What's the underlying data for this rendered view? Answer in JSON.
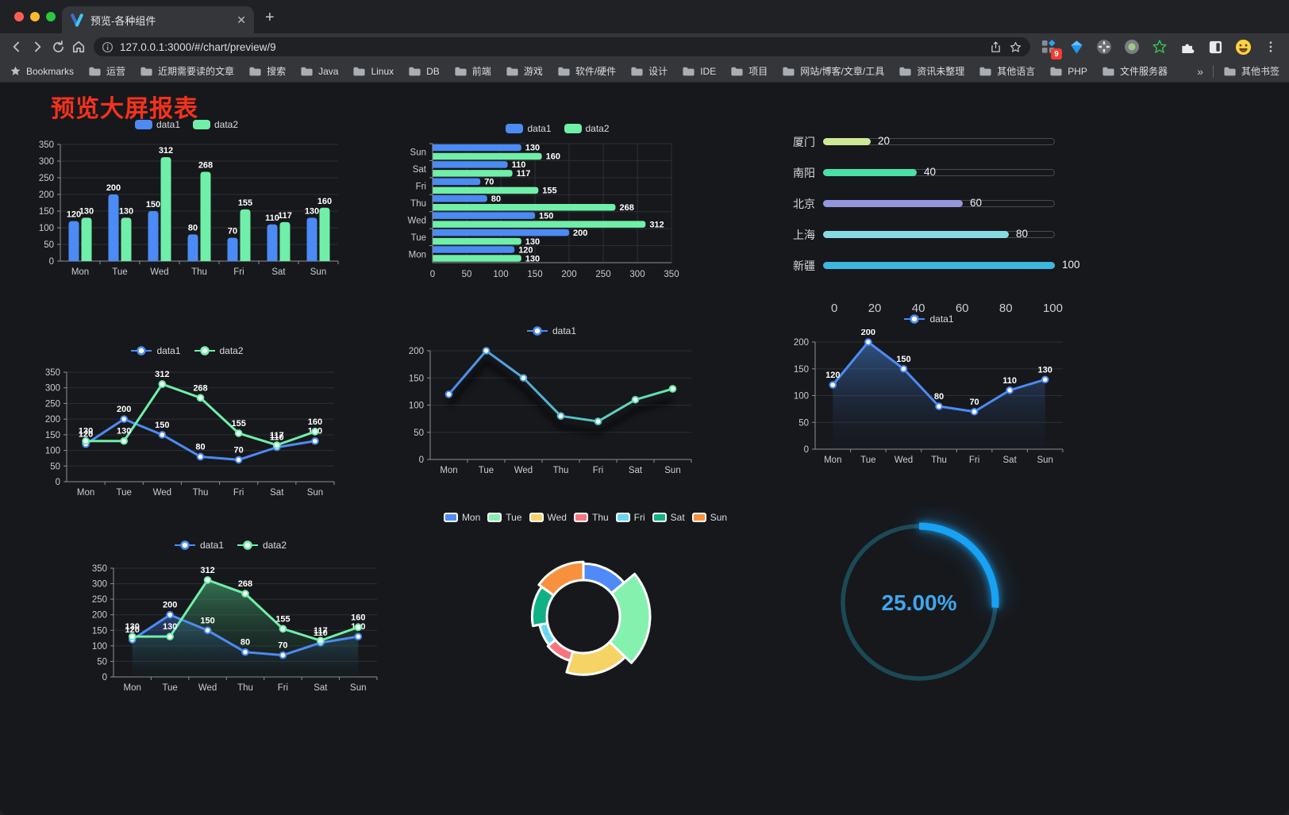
{
  "browser": {
    "tab": {
      "title": "预览-各种组件"
    },
    "url": "127.0.0.1:3000/#/chart/preview/9",
    "extensions_badge": "9",
    "bookmarks_bar": {
      "label": "Bookmarks",
      "folders": [
        "运营",
        "近期需要读的文章",
        "搜索",
        "Java",
        "Linux",
        "DB",
        "前端",
        "游戏",
        "软件/硬件",
        "设计",
        "IDE",
        "项目",
        "网站/博客/文章/工具",
        "资讯未整理",
        "其他语言",
        "PHP",
        "文件服务器"
      ],
      "overflow": "»",
      "other": "其他书签"
    }
  },
  "page": {
    "title": "预览大屏报表"
  },
  "chart_data": [
    {
      "id": "bar-vertical",
      "type": "bar",
      "categories": [
        "Mon",
        "Tue",
        "Wed",
        "Thu",
        "Fri",
        "Sat",
        "Sun"
      ],
      "series": [
        {
          "name": "data1",
          "color": "#4C8BF5",
          "values": [
            120,
            200,
            150,
            80,
            70,
            110,
            130
          ]
        },
        {
          "name": "data2",
          "color": "#6FEFA8",
          "values": [
            130,
            130,
            312,
            268,
            155,
            117,
            160
          ]
        }
      ],
      "ylim": [
        0,
        350
      ],
      "ytick": 50,
      "grid": true,
      "data_labels": true,
      "legend_position": "top"
    },
    {
      "id": "bar-horizontal",
      "type": "bar-horizontal",
      "categories": [
        "Mon",
        "Tue",
        "Wed",
        "Thu",
        "Fri",
        "Sat",
        "Sun"
      ],
      "series": [
        {
          "name": "data1",
          "color": "#4C8BF5",
          "values": [
            120,
            200,
            150,
            80,
            70,
            110,
            130
          ]
        },
        {
          "name": "data2",
          "color": "#6FEFA8",
          "values": [
            130,
            130,
            312,
            268,
            155,
            117,
            160
          ]
        }
      ],
      "xlim": [
        0,
        350
      ],
      "xtick": 50,
      "grid": true,
      "data_labels": true,
      "legend_position": "top"
    },
    {
      "id": "city-progress",
      "type": "progress-bars",
      "items": [
        {
          "label": "厦门",
          "value": 20,
          "color": "#cde995"
        },
        {
          "label": "南阳",
          "value": 40,
          "color": "#4ae0a8"
        },
        {
          "label": "北京",
          "value": 60,
          "color": "#9397de"
        },
        {
          "label": "上海",
          "value": 80,
          "color": "#87dae4"
        },
        {
          "label": "新疆",
          "value": 100,
          "color": "#3cb7de"
        }
      ],
      "xlim": [
        0,
        100
      ],
      "xticks": [
        0,
        20,
        40,
        60,
        80,
        100
      ]
    },
    {
      "id": "line-two",
      "type": "line",
      "categories": [
        "Mon",
        "Tue",
        "Wed",
        "Thu",
        "Fri",
        "Sat",
        "Sun"
      ],
      "series": [
        {
          "name": "data1",
          "color": "#4C8BF5",
          "values": [
            120,
            200,
            150,
            80,
            70,
            110,
            130
          ]
        },
        {
          "name": "data2",
          "color": "#6FEFA8",
          "values": [
            130,
            130,
            312,
            268,
            155,
            117,
            160
          ]
        }
      ],
      "ylim": [
        0,
        350
      ],
      "ytick": 50,
      "data_labels": true,
      "markers": true,
      "legend_position": "top"
    },
    {
      "id": "line-gradient",
      "type": "line",
      "categories": [
        "Mon",
        "Tue",
        "Wed",
        "Thu",
        "Fri",
        "Sat",
        "Sun"
      ],
      "series": [
        {
          "name": "data1",
          "color_start": "#4A8BF0",
          "color_end": "#62E9A9",
          "values": [
            120,
            200,
            150,
            80,
            70,
            110,
            130
          ]
        }
      ],
      "ylim": [
        0,
        200
      ],
      "ytick": 50,
      "data_labels": false,
      "markers": true,
      "shadow": true,
      "legend_position": "top"
    },
    {
      "id": "line-area",
      "type": "line",
      "categories": [
        "Mon",
        "Tue",
        "Wed",
        "Thu",
        "Fri",
        "Sat",
        "Sun"
      ],
      "series": [
        {
          "name": "data1",
          "color": "#4C8BF5",
          "area": true,
          "area_from": "rgba(70,130,215,0.55)",
          "area_to": "rgba(25,45,75,0.03)",
          "values": [
            120,
            200,
            150,
            80,
            70,
            110,
            130
          ]
        }
      ],
      "ylim": [
        0,
        200
      ],
      "ytick": 50,
      "data_labels": true,
      "markers": true,
      "legend_position": "top"
    },
    {
      "id": "area-two",
      "type": "line",
      "categories": [
        "Mon",
        "Tue",
        "Wed",
        "Thu",
        "Fri",
        "Sat",
        "Sun"
      ],
      "series": [
        {
          "name": "data1",
          "color": "#4C8BF5",
          "area": true,
          "area_from": "rgba(60,110,200,0.5)",
          "area_to": "rgba(20,40,70,0.04)",
          "values": [
            120,
            200,
            150,
            80,
            70,
            110,
            130
          ]
        },
        {
          "name": "data2",
          "color": "#6FEFA8",
          "area": true,
          "area_from": "rgba(80,190,130,0.55)",
          "area_to": "rgba(20,60,40,0.05)",
          "values": [
            130,
            130,
            312,
            268,
            155,
            117,
            160
          ]
        }
      ],
      "ylim": [
        0,
        350
      ],
      "ytick": 50,
      "data_labels": true,
      "markers": true,
      "legend_position": "top"
    },
    {
      "id": "rose-pie",
      "type": "pie",
      "rose": "radius",
      "categories": [
        "Mon",
        "Tue",
        "Wed",
        "Thu",
        "Fri",
        "Sat",
        "Sun"
      ],
      "values": [
        120,
        200,
        150,
        80,
        70,
        110,
        130
      ],
      "colors": [
        "#4E8BF8",
        "#85F1AE",
        "#F6D365",
        "#F8747F",
        "#66D8F4",
        "#10B184",
        "#F7913E"
      ],
      "legend_position": "top"
    },
    {
      "id": "gauge",
      "type": "gauge",
      "value": 25,
      "label": "25.00%",
      "color": "#17A2F4",
      "track_color": "#1C4956",
      "text_color": "#40A5EC"
    }
  ]
}
